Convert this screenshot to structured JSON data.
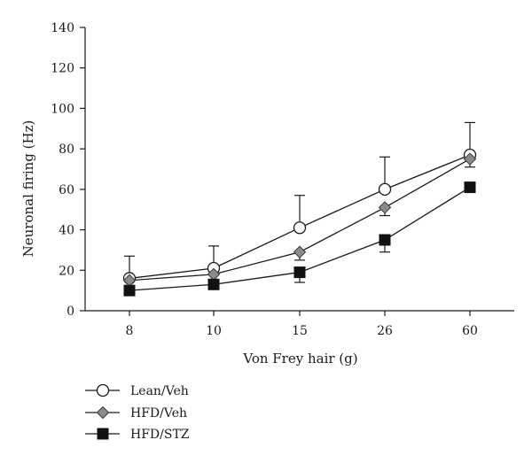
{
  "chart_data": {
    "type": "line",
    "xlabel": "Von Frey hair (g)",
    "ylabel": "Neuronal firing (Hz)",
    "categories": [
      "8",
      "10",
      "15",
      "26",
      "60"
    ],
    "ylim": [
      0,
      140
    ],
    "yticks": [
      0,
      20,
      40,
      60,
      80,
      100,
      120,
      140
    ],
    "grid": false,
    "legend": "bottom-left",
    "series": [
      {
        "name": "Lean/Veh",
        "marker": "circle-open",
        "values": [
          16,
          21,
          41,
          60,
          77
        ],
        "error_upper": [
          27,
          32,
          57,
          76,
          93
        ],
        "error_lower": [
          null,
          null,
          null,
          null,
          null
        ]
      },
      {
        "name": "HFD/Veh",
        "marker": "diamond-gray",
        "values": [
          15,
          18,
          29,
          51,
          75
        ],
        "error_upper": [
          null,
          null,
          null,
          null,
          null
        ],
        "error_lower": [
          null,
          null,
          25,
          47,
          71
        ]
      },
      {
        "name": "HFD/STZ",
        "marker": "square-filled",
        "values": [
          10,
          13,
          19,
          35,
          61
        ],
        "error_upper": [
          null,
          null,
          null,
          null,
          null
        ],
        "error_lower": [
          null,
          null,
          14,
          29,
          null
        ]
      }
    ]
  }
}
